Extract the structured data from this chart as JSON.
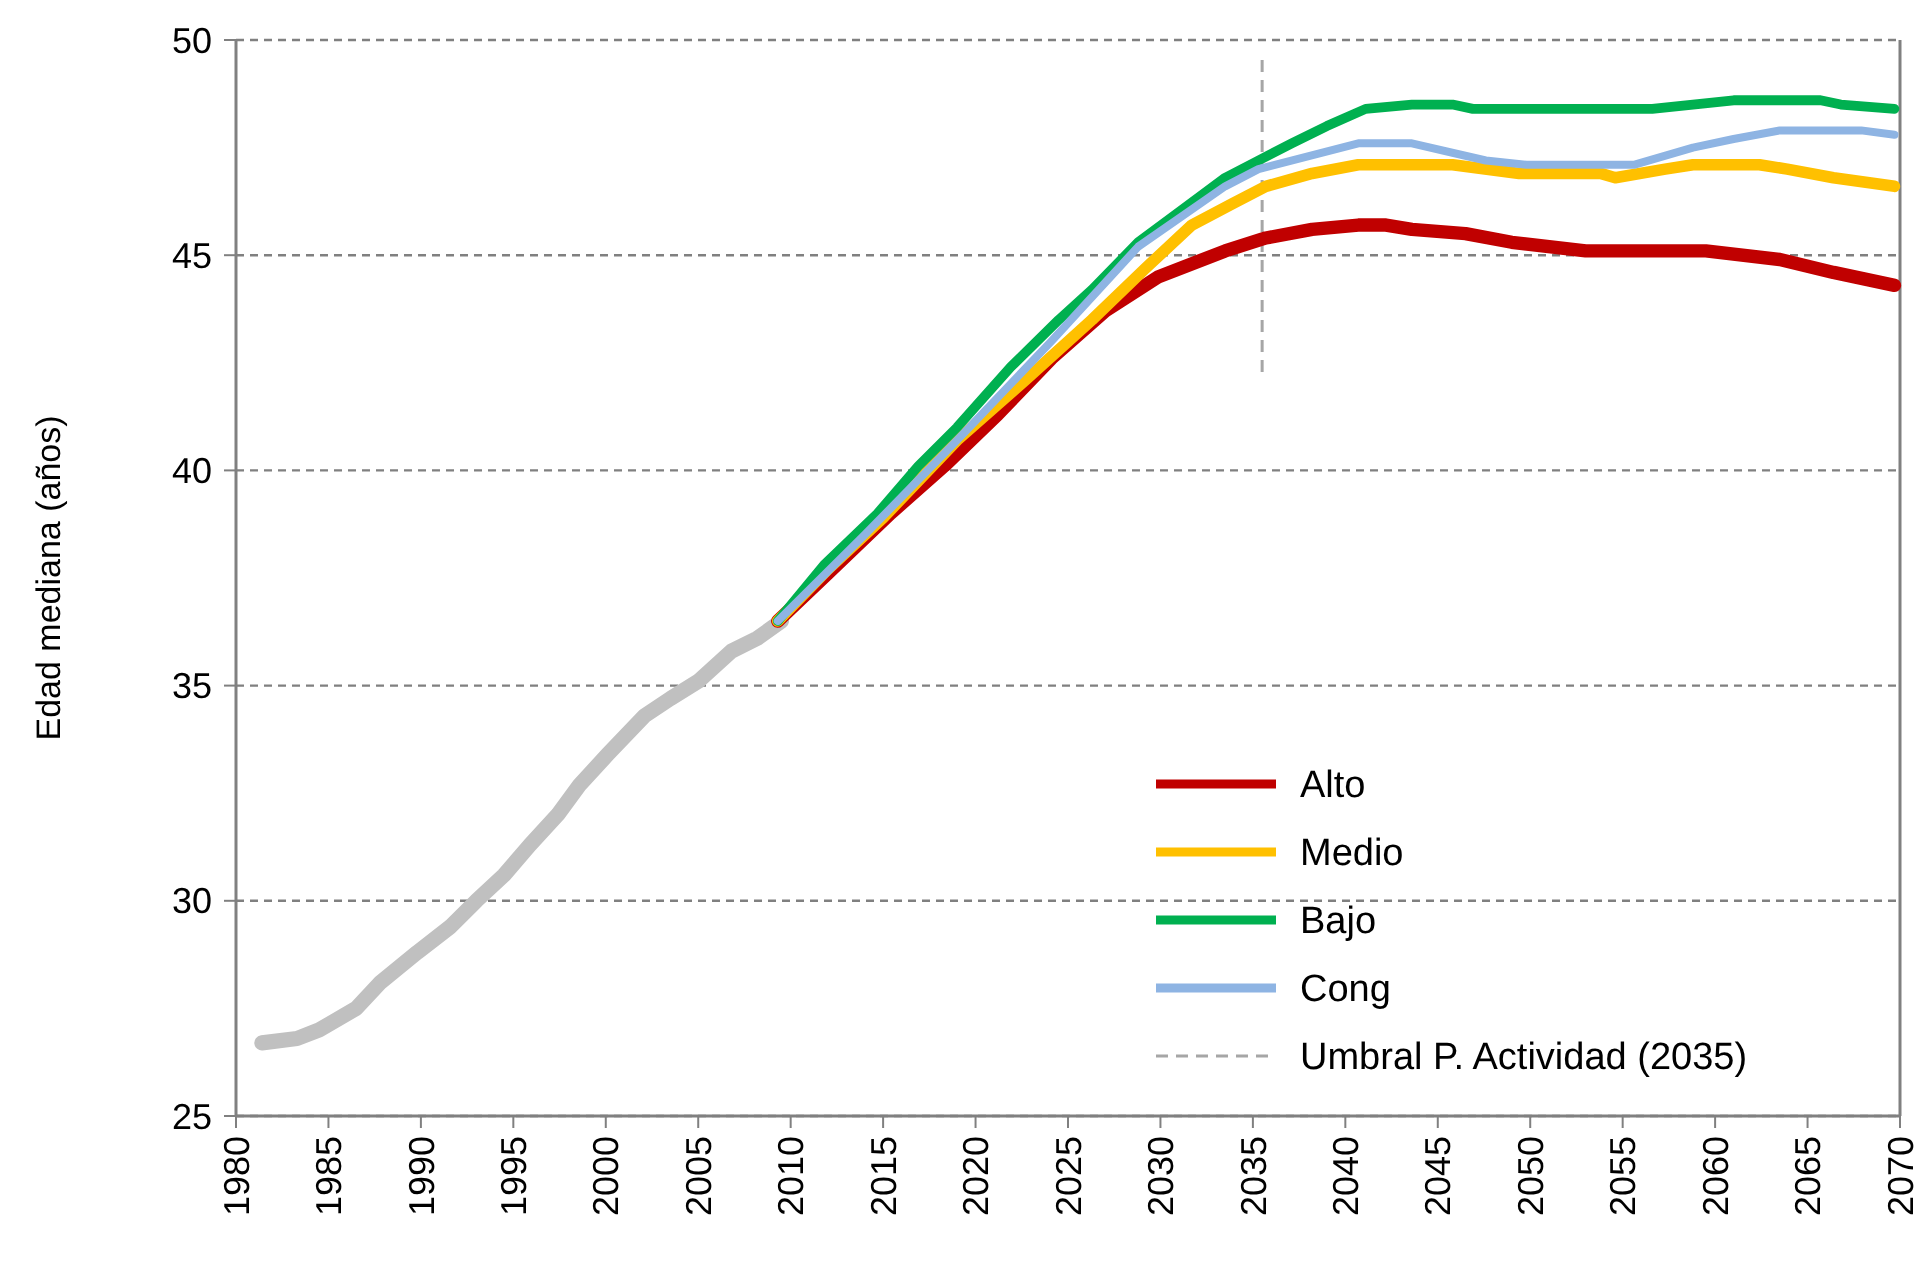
{
  "chart_data": {
    "type": "line",
    "ylabel": "Edad mediana (años)",
    "xlim": [
      1980,
      2070
    ],
    "xticks": [
      1980,
      1985,
      1990,
      1995,
      2000,
      2005,
      2010,
      2015,
      2020,
      2025,
      2030,
      2035,
      2040,
      2045,
      2050,
      2055,
      2060,
      2065,
      2070
    ],
    "ylim": [
      25,
      50
    ],
    "yticks": [
      25,
      30,
      35,
      40,
      45,
      50
    ],
    "grid": "y",
    "legend": "bottom right",
    "marker": "none",
    "line_style": "solid",
    "series": [
      {
        "color": "#c0c0c0",
        "x": [
          1981.4,
          1983.3,
          1984.5,
          1986.5,
          1987.8,
          1989.8,
          1991.6,
          1993,
          1994.5,
          1995.9,
          1997.4,
          1998.6,
          2000.1,
          2002.1,
          2003.5,
          2005,
          2006.8,
          2008.2,
          2009.5
        ],
        "values": [
          26.7,
          26.8,
          27.0,
          27.5,
          28.1,
          28.8,
          29.4,
          30.0,
          30.6,
          31.3,
          32.0,
          32.7,
          33.4,
          34.3,
          34.7,
          35.1,
          35.8,
          36.1,
          36.5
        ]
      },
      {
        "name": "Alto",
        "color": "#c00000",
        "x": [
          2009.3,
          2012,
          2015.4,
          2018.3,
          2021.2,
          2024.1,
          2027,
          2029.9,
          2033.5,
          2035.7,
          2038.2,
          2040.7,
          2042.2,
          2043.6,
          2046.5,
          2049,
          2053,
          2059.5,
          2063.5,
          2066.4,
          2069.7
        ],
        "values": [
          36.5,
          37.6,
          39.0,
          40.1,
          41.3,
          42.6,
          43.7,
          44.5,
          45.1,
          45.4,
          45.6,
          45.7,
          45.7,
          45.6,
          45.5,
          45.3,
          45.1,
          45.1,
          44.9,
          44.6,
          44.3
        ]
      },
      {
        "name": "Medio",
        "color": "#ffc000",
        "x": [
          2009.3,
          2012,
          2015,
          2019,
          2022.7,
          2026.3,
          2029.2,
          2031.7,
          2033.9,
          2035.7,
          2038.2,
          2040.7,
          2045.8,
          2049.4,
          2053.8,
          2054.6,
          2057.3,
          2058.8,
          2062.4,
          2063.9,
          2066.4,
          2069.7
        ],
        "values": [
          36.5,
          37.7,
          38.9,
          40.7,
          42.1,
          43.5,
          44.7,
          45.7,
          46.2,
          46.6,
          46.9,
          47.1,
          47.1,
          46.9,
          46.9,
          46.8,
          47.0,
          47.1,
          47.1,
          47.0,
          46.8,
          46.6
        ]
      },
      {
        "name": "Bajo",
        "color": "#00b050",
        "x": [
          2009.3,
          2011.8,
          2014.7,
          2016.9,
          2019,
          2021.9,
          2024.5,
          2026.3,
          2028.8,
          2031.3,
          2033.5,
          2035.3,
          2037.1,
          2039,
          2041.1,
          2043.6,
          2045.8,
          2046.9,
          2056.6,
          2058.8,
          2061,
          2065.7,
          2066.8,
          2069.7
        ],
        "values": [
          36.5,
          37.8,
          39.0,
          40.1,
          41.0,
          42.4,
          43.5,
          44.2,
          45.3,
          46.1,
          46.8,
          47.2,
          47.6,
          48.0,
          48.4,
          48.5,
          48.5,
          48.4,
          48.4,
          48.5,
          48.6,
          48.6,
          48.5,
          48.4
        ]
      },
      {
        "name": "Cong",
        "color": "#8eb4e3",
        "x": [
          2009.3,
          2014,
          2019,
          2024.1,
          2028.8,
          2033.5,
          2035.3,
          2040.7,
          2043.6,
          2047.6,
          2049.8,
          2055.6,
          2058.8,
          2061,
          2063.5,
          2067.9,
          2069.7
        ],
        "values": [
          36.5,
          38.5,
          40.7,
          43.0,
          45.2,
          46.6,
          47.0,
          47.6,
          47.6,
          47.2,
          47.1,
          47.1,
          47.5,
          47.7,
          47.9,
          47.9,
          47.8
        ]
      }
    ],
    "ref_lines": [
      {
        "axis": "x",
        "value": 2035.5,
        "label": "Umbral P. Actividad (2035)",
        "color": "#a6a6a6",
        "line_style": "dashed"
      }
    ]
  }
}
